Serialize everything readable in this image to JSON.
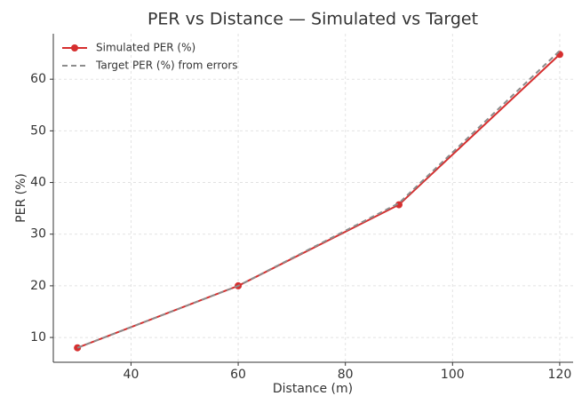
{
  "chart_data": {
    "type": "line",
    "title": "PER vs Distance — Simulated vs Target",
    "x_label": "Distance (m)",
    "y_label": "PER (%)",
    "x": [
      30,
      60,
      90,
      120
    ],
    "series": [
      {
        "name": "Simulated PER (%)",
        "color": "#d62f2f",
        "values": [
          8,
          20,
          35.7,
          64.8
        ],
        "style": "solid",
        "marker": true
      },
      {
        "name": "Target PER (%) from errors",
        "color": "#8c8c8c",
        "values": [
          8,
          20,
          36,
          65.5
        ],
        "style": "dashed",
        "marker": false
      }
    ],
    "xlim": [
      25.5,
      122.5
    ],
    "xticks": [
      40,
      60,
      80,
      100,
      120
    ],
    "ylim": [
      5.2,
      68.8
    ],
    "yticks": [
      10,
      20,
      30,
      40,
      50,
      60
    ],
    "grid": true,
    "legend": "upper left"
  }
}
